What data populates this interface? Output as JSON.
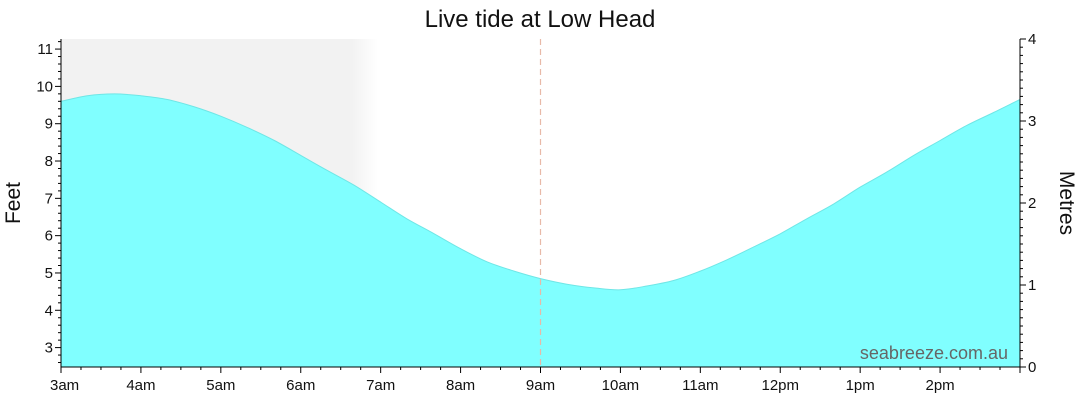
{
  "chart_data": {
    "type": "area",
    "title": "Live tide at Low Head",
    "ylabel_left": "Feet",
    "ylabel_right": "Metres",
    "watermark": "seabreeze.com.au",
    "x_tick_labels": [
      "3am",
      "4am",
      "5am",
      "6am",
      "7am",
      "8am",
      "9am",
      "10am",
      "11am",
      "12pm",
      "1pm",
      "2pm"
    ],
    "x_range_hours": [
      3,
      15
    ],
    "y_left_ticks": [
      3,
      4,
      5,
      6,
      7,
      8,
      9,
      10,
      11
    ],
    "y_left_range_ft": [
      2.48,
      11.27
    ],
    "y_right_ticks": [
      0,
      1,
      2,
      3,
      4
    ],
    "y_right_range_m": [
      0,
      4
    ],
    "current_time_hour": 9.0,
    "night_shade_until_hour": 7.0,
    "series": [
      {
        "x_hours": [
          3.0,
          3.33,
          3.67,
          4.0,
          4.33,
          4.67,
          5.0,
          5.33,
          5.67,
          6.0,
          6.33,
          6.67,
          7.0,
          7.33,
          7.67,
          8.0,
          8.33,
          8.67,
          9.0,
          9.33,
          9.67,
          10.0,
          10.33,
          10.67,
          11.0,
          11.33,
          11.67,
          12.0,
          12.33,
          12.67,
          13.0,
          13.33,
          13.67,
          14.0,
          14.33,
          14.67,
          15.0
        ],
        "values_ft": [
          9.6,
          9.75,
          9.8,
          9.75,
          9.65,
          9.45,
          9.2,
          8.9,
          8.55,
          8.15,
          7.75,
          7.35,
          6.9,
          6.45,
          6.05,
          5.65,
          5.3,
          5.05,
          4.85,
          4.7,
          4.6,
          4.55,
          4.65,
          4.8,
          5.05,
          5.35,
          5.7,
          6.05,
          6.45,
          6.85,
          7.3,
          7.7,
          8.15,
          8.55,
          8.95,
          9.3,
          9.65
        ]
      }
    ],
    "colors": {
      "tide_fill": "#80ffff",
      "night_shade": "#f2f2f2",
      "now_line": "#e8b9a8"
    }
  }
}
